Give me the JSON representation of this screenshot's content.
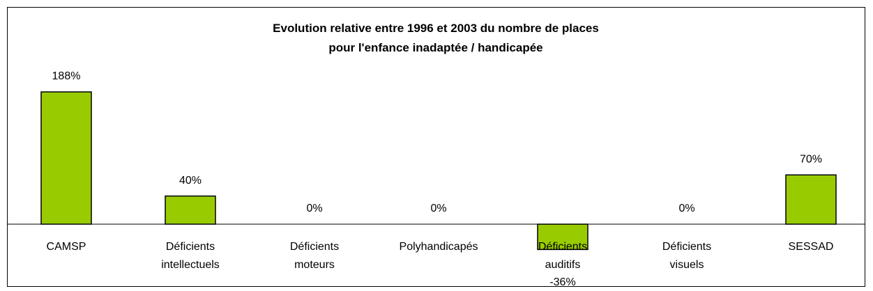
{
  "chart_data": {
    "type": "bar",
    "title": "Evolution relative entre 1996 et 2003 du nombre de places\npour l'enfance inadaptée / handicapée",
    "categories": [
      "CAMSP",
      "Déficients\nintellectuels",
      "Déficients\nmoteurs",
      "Polyhandicapés",
      "Déficients\nauditifs",
      "Déficients\nvisuels",
      "SESSAD"
    ],
    "values": [
      188,
      40,
      0,
      0,
      -36,
      0,
      70
    ],
    "value_labels": [
      "188%",
      "40%",
      "0%",
      "0%",
      "-36%",
      "0%",
      "70%"
    ],
    "color": "#99cc00"
  }
}
